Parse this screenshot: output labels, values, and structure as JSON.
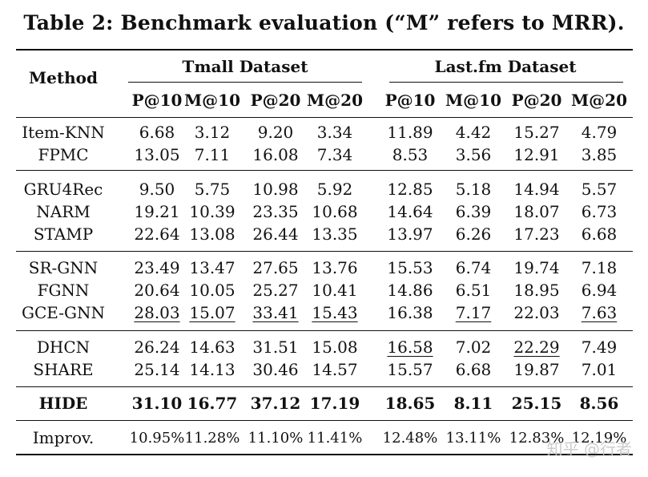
{
  "caption": "Table 2: Benchmark evaluation (“M” refers to MRR).",
  "method_header": "Method",
  "groups": [
    "Tmall Dataset",
    "Last.fm Dataset"
  ],
  "metrics": [
    "P@10",
    "M@10",
    "P@20",
    "M@20",
    "P@10",
    "M@10",
    "P@20",
    "M@20"
  ],
  "rows": [
    {
      "method": "Item-KNN",
      "values": [
        "6.68",
        "3.12",
        "9.20",
        "3.34",
        "11.89",
        "4.42",
        "15.27",
        "4.79"
      ],
      "underline": []
    },
    {
      "method": "FPMC",
      "values": [
        "13.05",
        "7.11",
        "16.08",
        "7.34",
        "8.53",
        "3.56",
        "12.91",
        "3.85"
      ],
      "underline": []
    },
    {
      "method": "GRU4Rec",
      "values": [
        "9.50",
        "5.75",
        "10.98",
        "5.92",
        "12.85",
        "5.18",
        "14.94",
        "5.57"
      ],
      "underline": []
    },
    {
      "method": "NARM",
      "values": [
        "19.21",
        "10.39",
        "23.35",
        "10.68",
        "14.64",
        "6.39",
        "18.07",
        "6.73"
      ],
      "underline": []
    },
    {
      "method": "STAMP",
      "values": [
        "22.64",
        "13.08",
        "26.44",
        "13.35",
        "13.97",
        "6.26",
        "17.23",
        "6.68"
      ],
      "underline": []
    },
    {
      "method": "SR-GNN",
      "values": [
        "23.49",
        "13.47",
        "27.65",
        "13.76",
        "15.53",
        "6.74",
        "19.74",
        "7.18"
      ],
      "underline": []
    },
    {
      "method": "FGNN",
      "values": [
        "20.64",
        "10.05",
        "25.27",
        "10.41",
        "14.86",
        "6.51",
        "18.95",
        "6.94"
      ],
      "underline": []
    },
    {
      "method": "GCE-GNN",
      "values": [
        "28.03",
        "15.07",
        "33.41",
        "15.43",
        "16.38",
        "7.17",
        "22.03",
        "7.63"
      ],
      "underline": [
        0,
        1,
        2,
        3,
        5,
        7
      ]
    },
    {
      "method": "DHCN",
      "values": [
        "26.24",
        "14.63",
        "31.51",
        "15.08",
        "16.58",
        "7.02",
        "22.29",
        "7.49"
      ],
      "underline": [
        4,
        6
      ]
    },
    {
      "method": "SHARE",
      "values": [
        "25.14",
        "14.13",
        "30.46",
        "14.57",
        "15.57",
        "6.68",
        "19.87",
        "7.01"
      ],
      "underline": []
    },
    {
      "method": "HIDE",
      "values": [
        "31.10",
        "16.77",
        "37.12",
        "17.19",
        "18.65",
        "8.11",
        "25.15",
        "8.56"
      ],
      "underline": [],
      "bold": true
    },
    {
      "method": "Improv.",
      "values": [
        "10.95%",
        "11.28%",
        "11.10%",
        "11.41%",
        "12.48%",
        "13.11%",
        "12.83%",
        "12.19%"
      ],
      "underline": []
    }
  ],
  "watermark": "知乎 @行者"
}
